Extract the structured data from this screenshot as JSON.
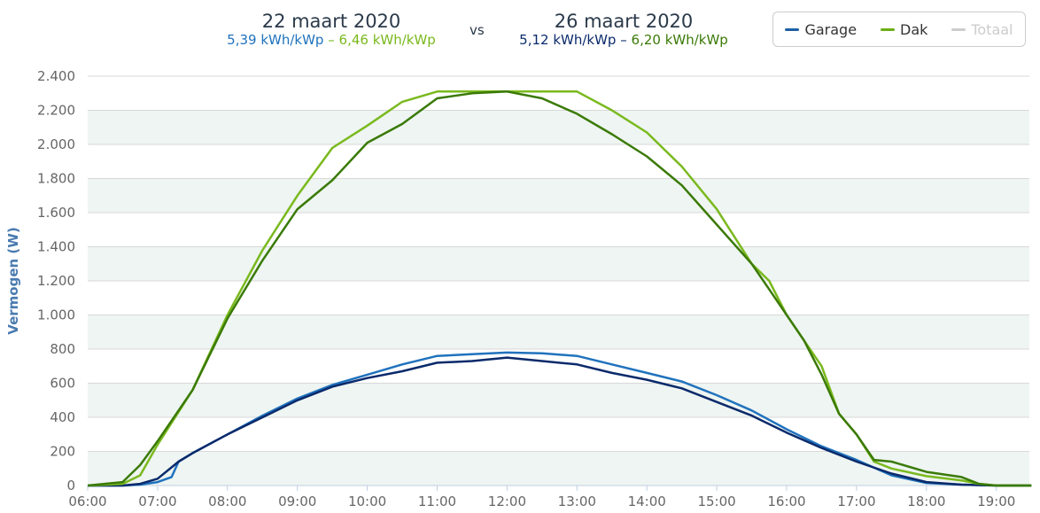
{
  "header": {
    "date_a": "22 maart 2020",
    "yield_a1": "5,39 kWh/kWp",
    "sep": "–",
    "yield_a2": "6,46 kWh/kWp",
    "vs": "vs",
    "date_b": "26 maart 2020",
    "yield_b1": "5,12 kWh/kWp",
    "yield_b2": "6,20 kWh/kWp"
  },
  "legend": [
    {
      "label": "Garage",
      "color": "#1c5fa4"
    },
    {
      "label": "Dak",
      "color": "#6cae14"
    },
    {
      "label": "Totaal",
      "color": "#cccccc"
    }
  ],
  "colors": {
    "garage_a": "#2072bd",
    "dak_a": "#7ab91e",
    "garage_b": "#0a2a6b",
    "dak_b": "#3a7a06",
    "band": "#eef5f2",
    "axis_text": "#666666",
    "ylabel": "#4a7bb0"
  },
  "chart_data": {
    "type": "line",
    "ylabel": "Vermogen (W)",
    "xlim": [
      6,
      19.5
    ],
    "ylim": [
      0,
      2400
    ],
    "xticks": [
      {
        "v": 6,
        "l": "06:00"
      },
      {
        "v": 7,
        "l": "07:00"
      },
      {
        "v": 8,
        "l": "08:00"
      },
      {
        "v": 9,
        "l": "09:00"
      },
      {
        "v": 10,
        "l": "10:00"
      },
      {
        "v": 11,
        "l": "11:00"
      },
      {
        "v": 12,
        "l": "12:00"
      },
      {
        "v": 13,
        "l": "13:00"
      },
      {
        "v": 14,
        "l": "14:00"
      },
      {
        "v": 15,
        "l": "15:00"
      },
      {
        "v": 16,
        "l": "16:00"
      },
      {
        "v": 17,
        "l": "17:00"
      },
      {
        "v": 18,
        "l": "18:00"
      },
      {
        "v": 19,
        "l": "19:00"
      }
    ],
    "yticks": [
      {
        "v": 0,
        "l": "0"
      },
      {
        "v": 200,
        "l": "200"
      },
      {
        "v": 400,
        "l": "400"
      },
      {
        "v": 600,
        "l": "600"
      },
      {
        "v": 800,
        "l": "800"
      },
      {
        "v": 1000,
        "l": "1.000"
      },
      {
        "v": 1200,
        "l": "1.200"
      },
      {
        "v": 1400,
        "l": "1.400"
      },
      {
        "v": 1600,
        "l": "1.600"
      },
      {
        "v": 1800,
        "l": "1.800"
      },
      {
        "v": 2000,
        "l": "2.000"
      },
      {
        "v": 2200,
        "l": "2.200"
      },
      {
        "v": 2400,
        "l": "2.400"
      }
    ],
    "series": [
      {
        "name": "Garage 22 maart 2020",
        "color_key": "garage_a",
        "points": [
          [
            6,
            0
          ],
          [
            6.5,
            0
          ],
          [
            6.75,
            5
          ],
          [
            7,
            20
          ],
          [
            7.2,
            50
          ],
          [
            7.3,
            140
          ],
          [
            7.5,
            190
          ],
          [
            8,
            300
          ],
          [
            8.5,
            410
          ],
          [
            9,
            510
          ],
          [
            9.5,
            590
          ],
          [
            10,
            650
          ],
          [
            10.5,
            710
          ],
          [
            11,
            760
          ],
          [
            11.5,
            770
          ],
          [
            12,
            780
          ],
          [
            12.5,
            775
          ],
          [
            13,
            760
          ],
          [
            13.5,
            710
          ],
          [
            14,
            660
          ],
          [
            14.5,
            610
          ],
          [
            15,
            530
          ],
          [
            15.5,
            440
          ],
          [
            16,
            330
          ],
          [
            16.5,
            230
          ],
          [
            17,
            150
          ],
          [
            17.5,
            60
          ],
          [
            18,
            15
          ],
          [
            18.5,
            5
          ],
          [
            19,
            0
          ],
          [
            19.5,
            0
          ]
        ]
      },
      {
        "name": "Garage 26 maart 2020",
        "color_key": "garage_b",
        "points": [
          [
            6,
            0
          ],
          [
            6.5,
            0
          ],
          [
            6.75,
            10
          ],
          [
            7,
            40
          ],
          [
            7.3,
            140
          ],
          [
            7.5,
            190
          ],
          [
            8,
            300
          ],
          [
            8.5,
            400
          ],
          [
            9,
            500
          ],
          [
            9.5,
            580
          ],
          [
            10,
            630
          ],
          [
            10.5,
            670
          ],
          [
            11,
            720
          ],
          [
            11.5,
            730
          ],
          [
            12,
            750
          ],
          [
            12.5,
            730
          ],
          [
            13,
            710
          ],
          [
            13.5,
            660
          ],
          [
            14,
            620
          ],
          [
            14.5,
            570
          ],
          [
            15,
            490
          ],
          [
            15.5,
            410
          ],
          [
            16,
            310
          ],
          [
            16.5,
            220
          ],
          [
            17,
            140
          ],
          [
            17.5,
            70
          ],
          [
            18,
            20
          ],
          [
            18.5,
            5
          ],
          [
            19,
            0
          ],
          [
            19.5,
            0
          ]
        ]
      },
      {
        "name": "Dak 22 maart 2020",
        "color_key": "dak_a",
        "points": [
          [
            6,
            0
          ],
          [
            6.5,
            10
          ],
          [
            6.75,
            60
          ],
          [
            7,
            240
          ],
          [
            7.5,
            560
          ],
          [
            8,
            1000
          ],
          [
            8.5,
            1380
          ],
          [
            9,
            1700
          ],
          [
            9.5,
            1980
          ],
          [
            10,
            2110
          ],
          [
            10.5,
            2250
          ],
          [
            11,
            2310
          ],
          [
            11.5,
            2310
          ],
          [
            12,
            2310
          ],
          [
            12.5,
            2310
          ],
          [
            13,
            2310
          ],
          [
            13.5,
            2200
          ],
          [
            14,
            2070
          ],
          [
            14.5,
            1870
          ],
          [
            15,
            1620
          ],
          [
            15.5,
            1300
          ],
          [
            15.75,
            1200
          ],
          [
            16,
            1000
          ],
          [
            16.5,
            700
          ],
          [
            16.75,
            420
          ],
          [
            17,
            300
          ],
          [
            17.25,
            140
          ],
          [
            17.5,
            100
          ],
          [
            18,
            55
          ],
          [
            18.5,
            30
          ],
          [
            18.75,
            10
          ],
          [
            19,
            0
          ],
          [
            19.5,
            0
          ]
        ]
      },
      {
        "name": "Dak 26 maart 2020",
        "color_key": "dak_b",
        "points": [
          [
            6,
            0
          ],
          [
            6.5,
            20
          ],
          [
            6.75,
            120
          ],
          [
            7,
            260
          ],
          [
            7.5,
            560
          ],
          [
            8,
            980
          ],
          [
            8.5,
            1320
          ],
          [
            9,
            1620
          ],
          [
            9.5,
            1790
          ],
          [
            10,
            2010
          ],
          [
            10.5,
            2120
          ],
          [
            11,
            2270
          ],
          [
            11.5,
            2300
          ],
          [
            12,
            2310
          ],
          [
            12.5,
            2270
          ],
          [
            13,
            2180
          ],
          [
            13.5,
            2060
          ],
          [
            14,
            1930
          ],
          [
            14.5,
            1760
          ],
          [
            15,
            1530
          ],
          [
            15.5,
            1300
          ],
          [
            15.75,
            1150
          ],
          [
            16,
            1000
          ],
          [
            16.25,
            850
          ],
          [
            16.5,
            650
          ],
          [
            16.75,
            420
          ],
          [
            17,
            300
          ],
          [
            17.25,
            150
          ],
          [
            17.5,
            140
          ],
          [
            18,
            80
          ],
          [
            18.5,
            50
          ],
          [
            18.75,
            10
          ],
          [
            19,
            0
          ],
          [
            19.5,
            0
          ]
        ]
      }
    ]
  }
}
